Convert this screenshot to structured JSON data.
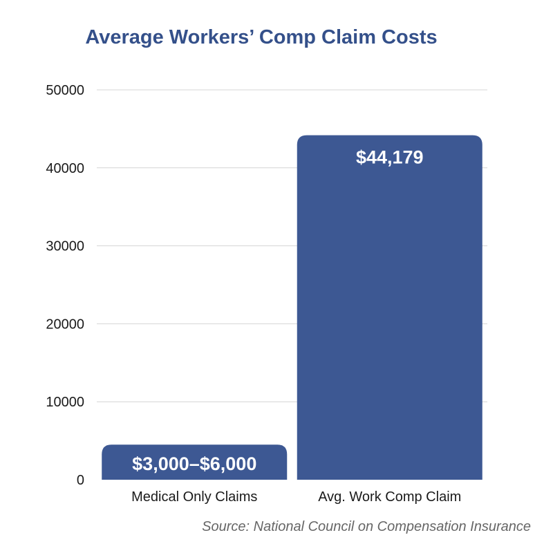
{
  "chart_data": {
    "type": "bar",
    "title": "Average Workers’ Comp Claim Costs",
    "categories": [
      "Medical Only Claims",
      "Avg. Work Comp Claim"
    ],
    "values": [
      4500,
      44179
    ],
    "data_labels": [
      "$3,000–$6,000",
      "$44,179"
    ],
    "ylim": [
      0,
      50000
    ],
    "yticks": [
      "0",
      "10000",
      "20000",
      "30000",
      "40000",
      "50000"
    ],
    "grid": true,
    "xlabel": "",
    "ylabel": "",
    "source": "Source: National Council on Compensation Insurance",
    "bar_color": "#3d5893"
  }
}
